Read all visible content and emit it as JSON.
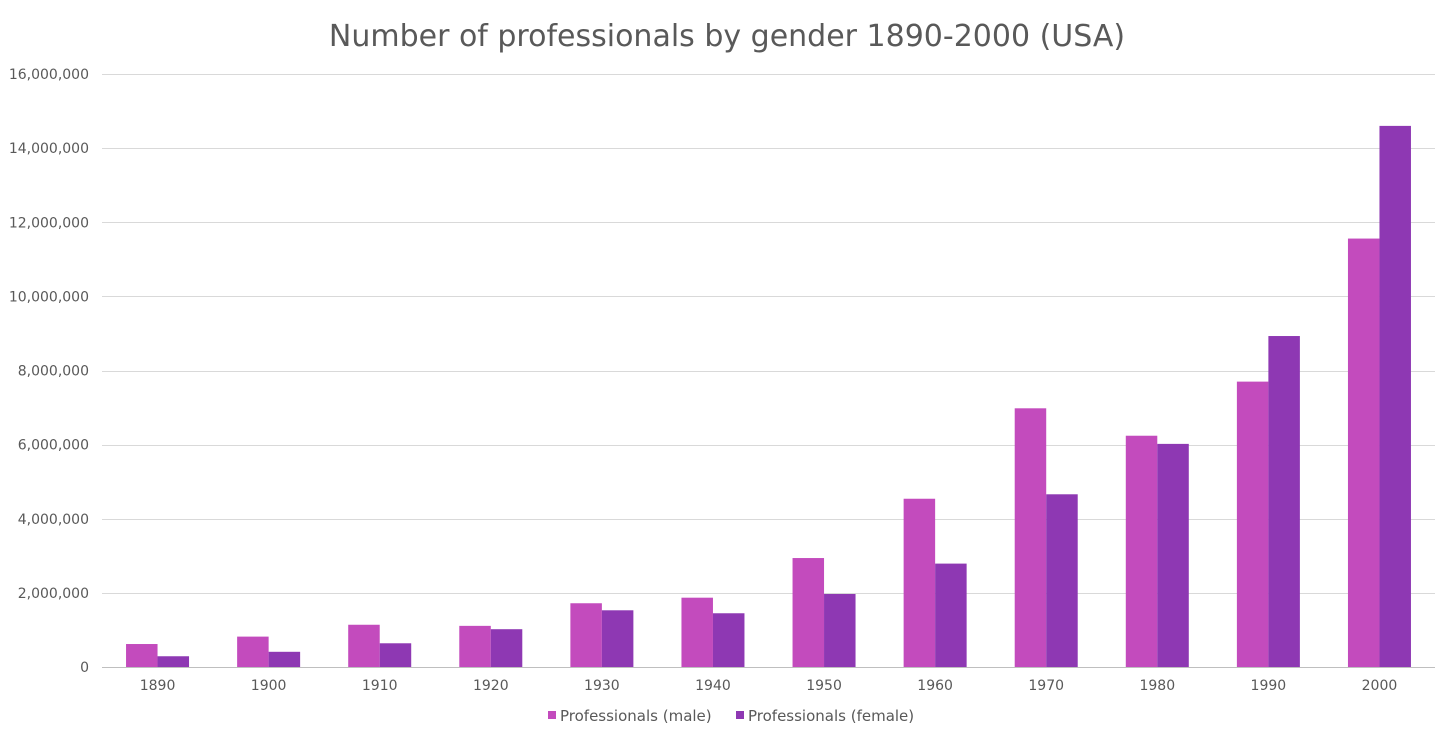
{
  "chart_data": {
    "type": "bar",
    "title": "Number of professionals by gender 1890-2000 (USA)",
    "xlabel": "",
    "ylabel": "",
    "categories": [
      "1890",
      "1900",
      "1910",
      "1920",
      "1930",
      "1940",
      "1950",
      "1960",
      "1970",
      "1980",
      "1990",
      "2000"
    ],
    "series": [
      {
        "name": "Professionals (male)",
        "color": "#c34bbd",
        "values": [
          620000,
          820000,
          1140000,
          1110000,
          1720000,
          1870000,
          2940000,
          4540000,
          6980000,
          6240000,
          7700000,
          11560000
        ]
      },
      {
        "name": "Professionals (female)",
        "color": "#8e38b3",
        "values": [
          290000,
          410000,
          640000,
          1020000,
          1530000,
          1450000,
          1970000,
          2790000,
          4660000,
          6020000,
          8930000,
          14600000
        ]
      }
    ],
    "ylim": [
      0,
      16000000
    ],
    "yticks": [
      0,
      2000000,
      4000000,
      6000000,
      8000000,
      10000000,
      12000000,
      14000000,
      16000000
    ],
    "ytick_labels": [
      "0",
      "2,000,000",
      "4,000,000",
      "6,000,000",
      "8,000,000",
      "10,000,000",
      "12,000,000",
      "14,000,000",
      "16,000,000"
    ],
    "grid": true,
    "legend_position": "bottom-center"
  }
}
